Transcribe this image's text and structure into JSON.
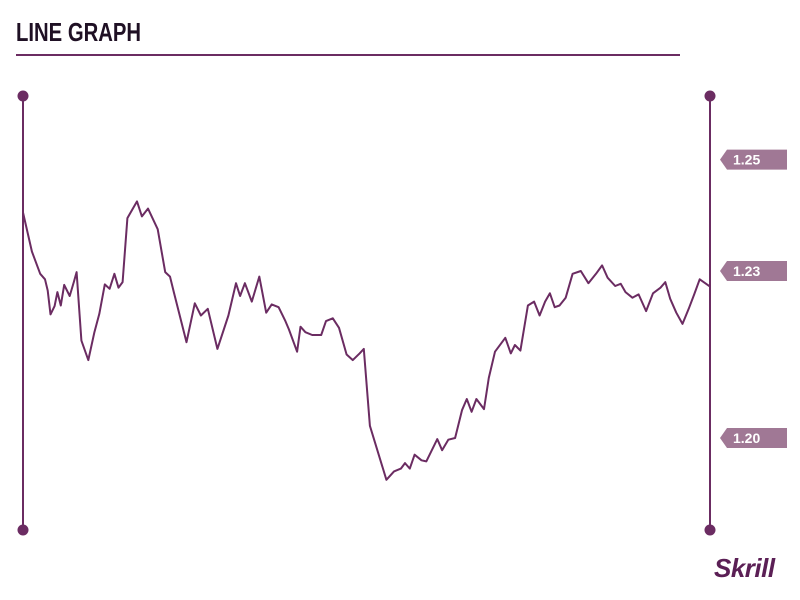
{
  "title": "LINE GRAPH",
  "logo": "Skrill",
  "colors": {
    "line": "#6b2c62",
    "axis": "#6b2c62",
    "tag": "#a07895",
    "title": "#1f1024"
  },
  "chart_data": {
    "type": "line",
    "title": "LINE GRAPH",
    "xlabel": "",
    "ylabel": "",
    "grid": false,
    "legend": "none",
    "ylim": [
      1.1709,
      1.2679
    ],
    "y_tick_labels": [
      "1.25",
      "1.23",
      "1.20"
    ],
    "y_ticks": [
      1.25,
      1.23,
      1.2
    ],
    "xlim": [
      0,
      100
    ],
    "series": [
      {
        "values": [
          [
            0,
            1.2405
          ],
          [
            1.3,
            1.2335
          ],
          [
            2.5,
            1.2295
          ],
          [
            3.2,
            1.2285
          ],
          [
            3.6,
            1.2265
          ],
          [
            4.0,
            1.2222
          ],
          [
            4.6,
            1.2237
          ],
          [
            5.0,
            1.2262
          ],
          [
            5.5,
            1.2238
          ],
          [
            6.0,
            1.2275
          ],
          [
            6.8,
            1.2255
          ],
          [
            7.4,
            1.228
          ],
          [
            7.8,
            1.2298
          ],
          [
            8.5,
            1.2175
          ],
          [
            9.5,
            1.214
          ],
          [
            10.4,
            1.219
          ],
          [
            11.1,
            1.2223
          ],
          [
            11.9,
            1.2276
          ],
          [
            12.6,
            1.2268
          ],
          [
            13.3,
            1.2295
          ],
          [
            13.9,
            1.227
          ],
          [
            14.5,
            1.228
          ],
          [
            15.2,
            1.2395
          ],
          [
            16.6,
            1.2425
          ],
          [
            17.3,
            1.2398
          ],
          [
            18.2,
            1.2412
          ],
          [
            19.6,
            1.2375
          ],
          [
            20.7,
            1.2298
          ],
          [
            21.4,
            1.229
          ],
          [
            22.0,
            1.226
          ],
          [
            23.8,
            1.2172
          ],
          [
            25.0,
            1.2242
          ],
          [
            25.9,
            1.222
          ],
          [
            26.9,
            1.2232
          ],
          [
            28.3,
            1.216
          ],
          [
            29.9,
            1.222
          ],
          [
            31.0,
            1.2278
          ],
          [
            31.6,
            1.2255
          ],
          [
            32.3,
            1.2278
          ],
          [
            33.3,
            1.2245
          ],
          [
            34.4,
            1.229
          ],
          [
            35.4,
            1.2225
          ],
          [
            36.2,
            1.224
          ],
          [
            37.2,
            1.2235
          ],
          [
            38.2,
            1.221
          ],
          [
            38.7,
            1.2195
          ],
          [
            39.9,
            1.2155
          ],
          [
            40.4,
            1.22
          ],
          [
            41.1,
            1.219
          ],
          [
            42.1,
            1.2185
          ],
          [
            43.4,
            1.2185
          ],
          [
            44.1,
            1.221
          ],
          [
            45.1,
            1.2215
          ],
          [
            46.0,
            1.2198
          ],
          [
            47.1,
            1.215
          ],
          [
            48.0,
            1.214
          ],
          [
            49.0,
            1.2152
          ],
          [
            49.6,
            1.216
          ],
          [
            50.5,
            1.2022
          ],
          [
            52.9,
            1.1925
          ],
          [
            54.0,
            1.194
          ],
          [
            55.0,
            1.1945
          ],
          [
            55.6,
            1.1955
          ],
          [
            56.3,
            1.1945
          ],
          [
            57.0,
            1.197
          ],
          [
            58.0,
            1.196
          ],
          [
            58.7,
            1.1958
          ],
          [
            60.3,
            1.1998
          ],
          [
            61.0,
            1.1978
          ],
          [
            61.9,
            1.1997
          ],
          [
            62.9,
            1.2
          ],
          [
            63.9,
            1.205
          ],
          [
            64.6,
            1.207
          ],
          [
            65.3,
            1.2047
          ],
          [
            66.0,
            1.207
          ],
          [
            67.1,
            1.2052
          ],
          [
            67.8,
            1.2108
          ],
          [
            68.7,
            1.2155
          ],
          [
            70.2,
            1.218
          ],
          [
            71.0,
            1.2152
          ],
          [
            71.6,
            1.2167
          ],
          [
            72.4,
            1.2157
          ],
          [
            73.5,
            1.2238
          ],
          [
            74.4,
            1.2245
          ],
          [
            75.2,
            1.222
          ],
          [
            76.0,
            1.2245
          ],
          [
            76.7,
            1.226
          ],
          [
            77.4,
            1.2235
          ],
          [
            78.1,
            1.2238
          ],
          [
            79.0,
            1.2252
          ],
          [
            80.0,
            1.2295
          ],
          [
            81.2,
            1.23
          ],
          [
            82.3,
            1.2278
          ],
          [
            83.4,
            1.2295
          ],
          [
            84.3,
            1.231
          ],
          [
            85.1,
            1.2288
          ],
          [
            86.2,
            1.2273
          ],
          [
            87.0,
            1.2277
          ],
          [
            87.7,
            1.2262
          ],
          [
            88.7,
            1.2252
          ],
          [
            89.6,
            1.2258
          ],
          [
            90.7,
            1.2228
          ],
          [
            91.7,
            1.226
          ],
          [
            92.8,
            1.227
          ],
          [
            93.5,
            1.228
          ],
          [
            94.2,
            1.225
          ],
          [
            95.1,
            1.2225
          ],
          [
            96.0,
            1.2205
          ],
          [
            96.9,
            1.2232
          ],
          [
            97.7,
            1.2258
          ],
          [
            98.5,
            1.2285
          ],
          [
            99.3,
            1.2278
          ],
          [
            100,
            1.2272
          ]
        ]
      }
    ]
  }
}
